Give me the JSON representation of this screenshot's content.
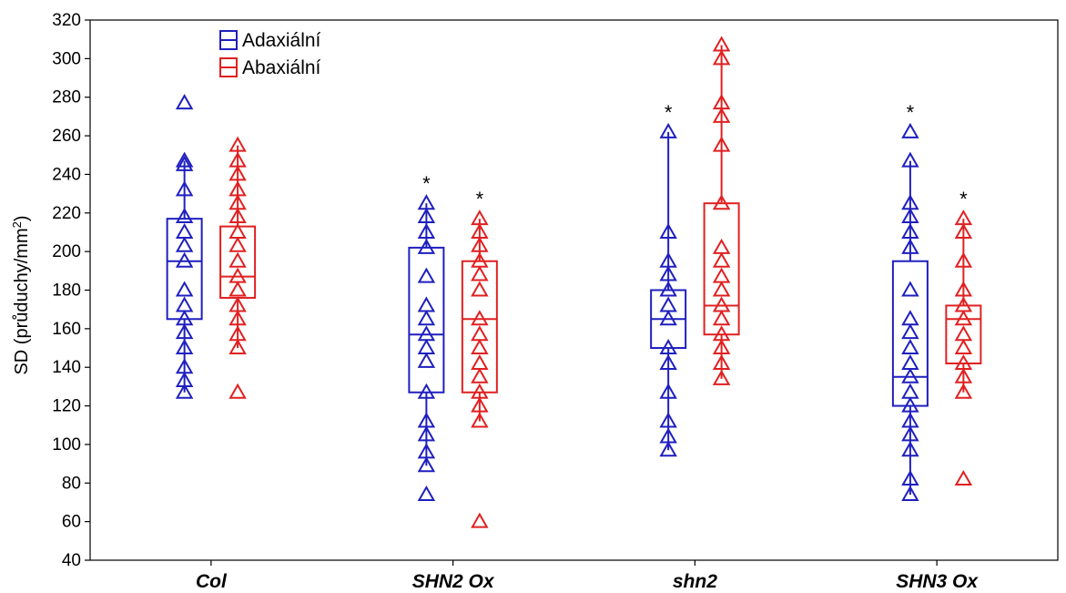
{
  "chart_data": {
    "type": "box",
    "categories": [
      "Col",
      "SHN2 Ox",
      "shn2",
      "SHN3 Ox"
    ],
    "ylabel": "SD (průduchy/mm",
    "ylabel_sup": "2",
    "ylabel_tail": ")",
    "ylim": [
      40,
      320
    ],
    "yticks": [
      40,
      60,
      80,
      100,
      120,
      140,
      160,
      180,
      200,
      220,
      240,
      260,
      280,
      300,
      320
    ],
    "legend": {
      "placement": "top-left"
    },
    "series": [
      {
        "name": "Adaxiální",
        "color": "#1f1fbf",
        "boxes": [
          {
            "q1": 165,
            "median": 195,
            "q3": 217,
            "whisker_low": 127,
            "whisker_high": 247,
            "points": [
              127,
              133,
              140,
              150,
              158,
              165,
              172,
              180,
              195,
              203,
              210,
              218,
              232,
              245,
              247,
              277
            ],
            "significant": false
          },
          {
            "q1": 127,
            "median": 157,
            "q3": 202,
            "whisker_low": 89,
            "whisker_high": 225,
            "points": [
              74,
              89,
              96,
              105,
              112,
              127,
              143,
              150,
              157,
              165,
              172,
              187,
              202,
              210,
              218,
              225
            ],
            "significant": true
          },
          {
            "q1": 150,
            "median": 165,
            "q3": 180,
            "whisker_low": 97,
            "whisker_high": 262,
            "points": [
              97,
              104,
              112,
              127,
              142,
              150,
              165,
              172,
              180,
              188,
              195,
              210,
              262
            ],
            "significant": true
          },
          {
            "q1": 120,
            "median": 135,
            "q3": 195,
            "whisker_low": 74,
            "whisker_high": 247,
            "points": [
              74,
              82,
              97,
              105,
              112,
              120,
              127,
              135,
              142,
              150,
              158,
              165,
              180,
              202,
              210,
              218,
              225,
              247,
              262
            ],
            "significant": true
          }
        ]
      },
      {
        "name": "Abaxiální",
        "color": "#e02020",
        "boxes": [
          {
            "q1": 176,
            "median": 187,
            "q3": 213,
            "whisker_low": 150,
            "whisker_high": 255,
            "points": [
              127,
              150,
              157,
              165,
              172,
              180,
              187,
              195,
              203,
              210,
              218,
              225,
              232,
              240,
              247,
              255
            ],
            "significant": false
          },
          {
            "q1": 127,
            "median": 165,
            "q3": 195,
            "whisker_low": 112,
            "whisker_high": 217,
            "points": [
              60,
              112,
              120,
              127,
              135,
              142,
              150,
              157,
              165,
              180,
              188,
              195,
              203,
              210,
              217
            ],
            "significant": true
          },
          {
            "q1": 157,
            "median": 172,
            "q3": 225,
            "whisker_low": 134,
            "whisker_high": 307,
            "points": [
              134,
              142,
              150,
              157,
              165,
              172,
              180,
              187,
              195,
              202,
              225,
              255,
              270,
              277,
              300,
              307
            ],
            "significant": false
          },
          {
            "q1": 142,
            "median": 165,
            "q3": 172,
            "whisker_low": 127,
            "whisker_high": 217,
            "points": [
              82,
              127,
              135,
              142,
              150,
              157,
              165,
              172,
              180,
              195,
              210,
              217
            ],
            "significant": true
          }
        ]
      }
    ],
    "annotation": "*"
  }
}
